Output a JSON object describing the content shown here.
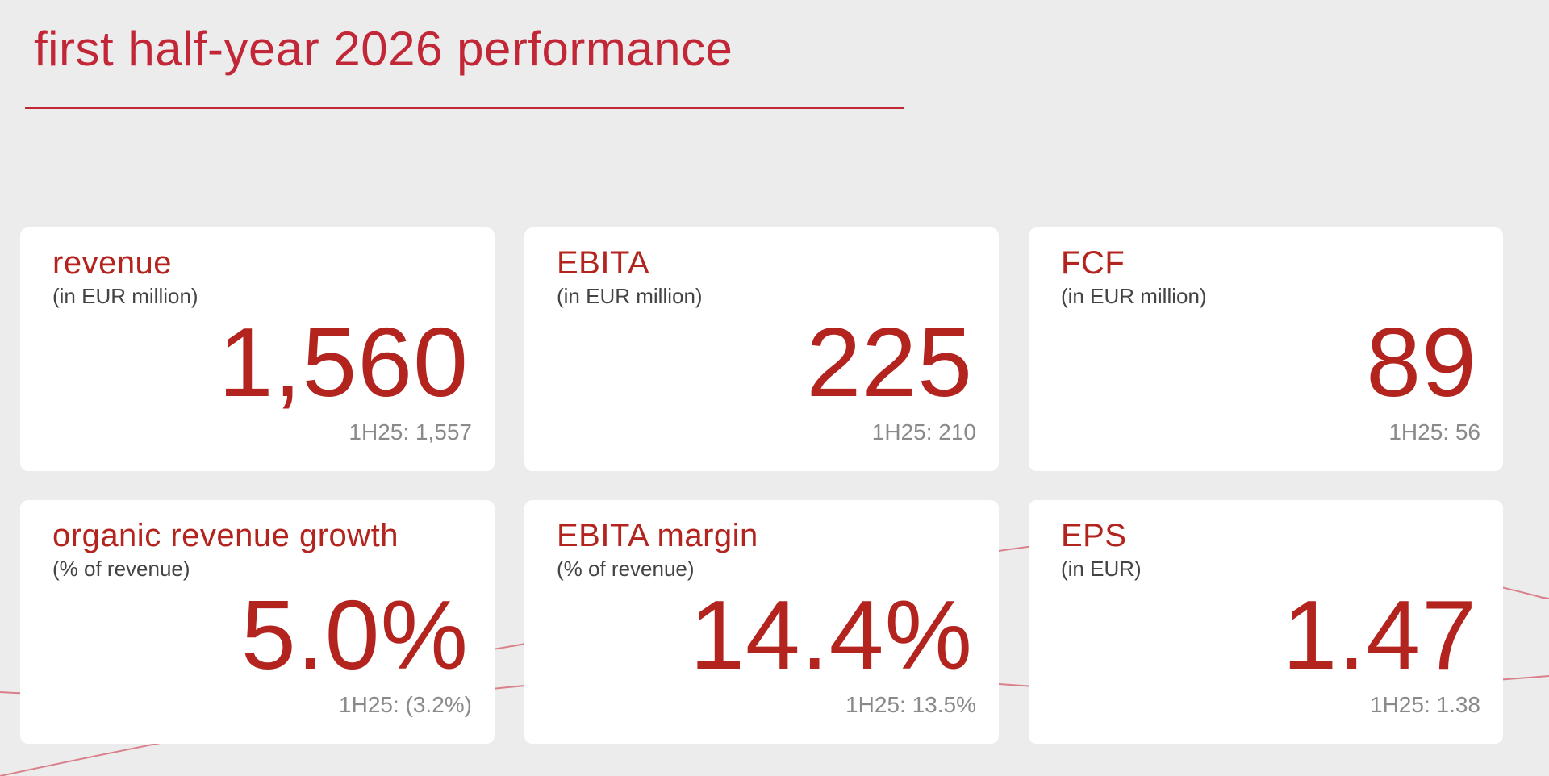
{
  "header": {
    "title": "first half-year 2026 performance"
  },
  "colors": {
    "accent": "#c22737",
    "value_red": "#b3241f",
    "background": "#ececec",
    "card": "#ffffff",
    "unit_text": "#444444",
    "prior_text": "#8a8a8a"
  },
  "kpis": [
    {
      "label": "revenue",
      "unit": "(in EUR million)",
      "value": "1,560",
      "prior": "1H25: 1,557"
    },
    {
      "label": "EBITA",
      "unit": "(in EUR million)",
      "value": "225",
      "prior": "1H25: 210"
    },
    {
      "label": "FCF",
      "unit": "(in EUR million)",
      "value": "89",
      "prior": "1H25: 56"
    },
    {
      "label": "organic revenue growth",
      "unit": "(% of revenue)",
      "value": "5.0%",
      "prior": "1H25: (3.2%)"
    },
    {
      "label": "EBITA margin",
      "unit": "(% of revenue)",
      "value": "14.4%",
      "prior": "1H25: 13.5%"
    },
    {
      "label": "EPS",
      "unit": "(in EUR)",
      "value": "1.47",
      "prior": "1H25: 1.38"
    }
  ]
}
